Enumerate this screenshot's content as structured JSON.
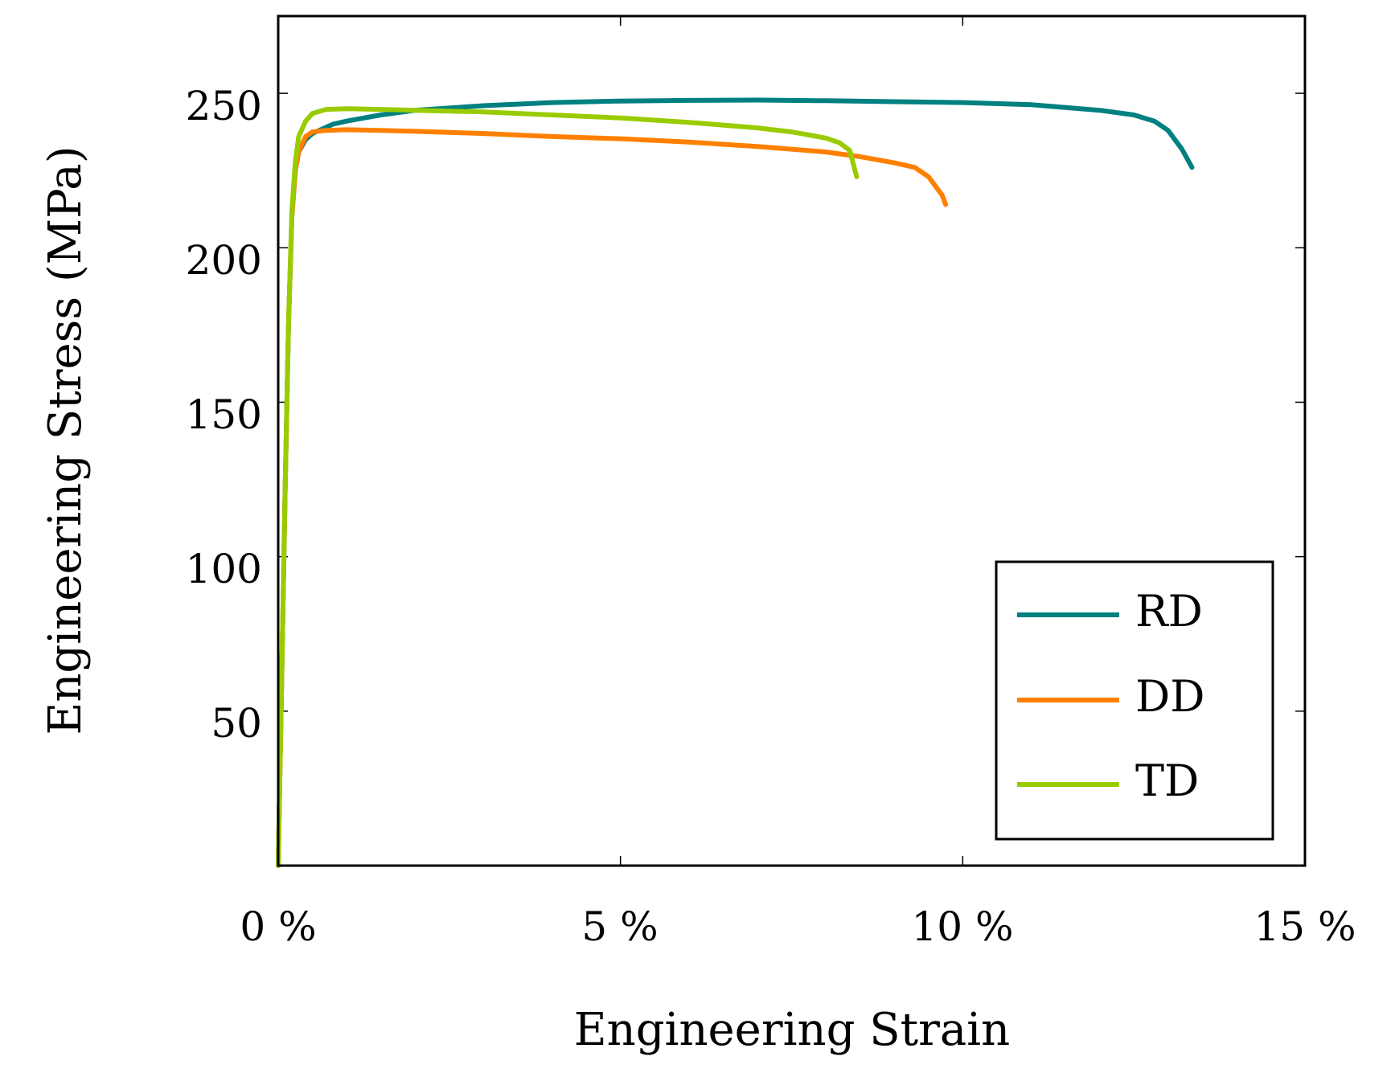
{
  "chart_data": {
    "type": "line",
    "title": "",
    "xlabel": "Engineering Strain",
    "ylabel": "Engineering Stress (MPa)",
    "xlim": [
      0,
      15
    ],
    "ylim": [
      0,
      275
    ],
    "xticks": [
      0,
      5,
      10,
      15
    ],
    "xtick_labels": [
      "0 %",
      "5 %",
      "10 %",
      "15 %"
    ],
    "yticks": [
      50,
      100,
      150,
      200,
      250
    ],
    "ytick_labels": [
      "50",
      "100",
      "150",
      "200",
      "250"
    ],
    "grid": false,
    "legend_position": "bottom-right",
    "series": [
      {
        "name": "RD",
        "color": "#008080",
        "x": [
          0,
          0.05,
          0.1,
          0.15,
          0.2,
          0.25,
          0.3,
          0.4,
          0.5,
          0.6,
          0.8,
          1.0,
          1.5,
          2,
          3,
          4,
          5,
          6,
          7,
          8,
          9,
          10,
          11,
          12,
          12.5,
          12.8,
          13.0,
          13.2,
          13.35
        ],
        "y": [
          0,
          60,
          120,
          175,
          210,
          225,
          231,
          235,
          237,
          238,
          240,
          241,
          243,
          244.5,
          246,
          247,
          247.5,
          247.7,
          247.8,
          247.6,
          247.3,
          247,
          246.3,
          244.5,
          243,
          241,
          238,
          232,
          226
        ]
      },
      {
        "name": "DD",
        "color": "#ff8000",
        "x": [
          0,
          0.05,
          0.1,
          0.15,
          0.2,
          0.25,
          0.3,
          0.4,
          0.5,
          0.7,
          1.0,
          1.5,
          2,
          3,
          4,
          5,
          6,
          7,
          8,
          8.5,
          9,
          9.3,
          9.5,
          9.6,
          9.7,
          9.75
        ],
        "y": [
          0,
          60,
          120,
          175,
          210,
          225,
          231,
          236,
          237.5,
          238,
          238.2,
          238,
          237.7,
          237,
          236,
          235.3,
          234.2,
          232.8,
          231,
          229.5,
          227.5,
          226,
          223,
          220,
          217,
          214
        ]
      },
      {
        "name": "TD",
        "color": "#99cc00",
        "x": [
          0,
          0.05,
          0.1,
          0.15,
          0.2,
          0.25,
          0.3,
          0.4,
          0.5,
          0.7,
          1.0,
          1.5,
          2,
          3,
          4,
          5,
          6,
          7,
          7.5,
          8,
          8.2,
          8.35,
          8.45
        ],
        "y": [
          0,
          60,
          120,
          175,
          212,
          228,
          236,
          241,
          243.5,
          244.8,
          245,
          244.8,
          244.5,
          244,
          243,
          242,
          240.6,
          238.8,
          237.5,
          235.5,
          234,
          231.5,
          223
        ]
      }
    ]
  }
}
